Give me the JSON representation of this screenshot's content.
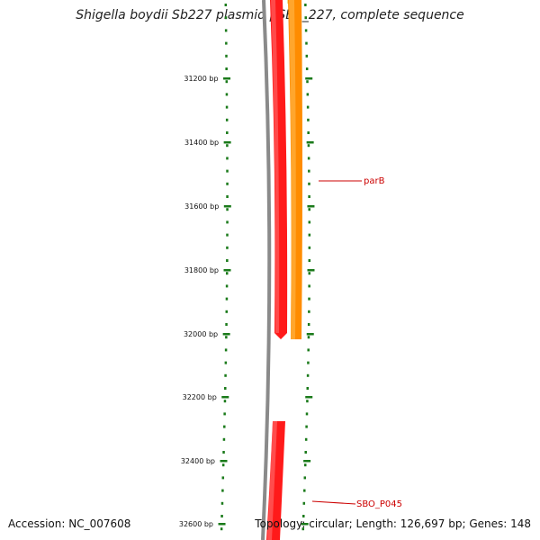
{
  "title": "Shigella boydii Sb227 plasmid pSB4_227, complete sequence",
  "accession": "Accession: NC_007608",
  "summary": "Topology: circular; Length: 126,697 bp; Genes: 148",
  "ruler": {
    "ticks": [
      "31200 bp",
      "31400 bp",
      "31600 bp",
      "31800 bp",
      "32000 bp",
      "32200 bp",
      "32400 bp",
      "32600 bp"
    ]
  },
  "features": [
    {
      "label": "parB"
    },
    {
      "label": "SBO_P045"
    }
  ],
  "colors": {
    "backbone": "#8a8a8a",
    "gene_forward": "#ff1a1a",
    "gene_reverse": "#ff8c00",
    "gene_top": "#f2e08a",
    "tick": "#1a7a1a",
    "label": "#cc0000"
  }
}
